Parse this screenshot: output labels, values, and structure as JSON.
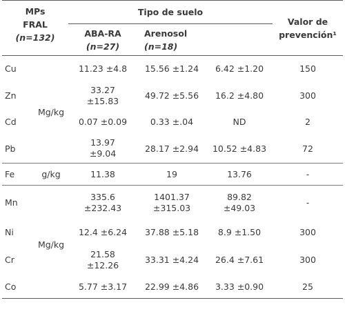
{
  "header": {
    "mps": "MPs",
    "fral": "FRAL",
    "n_fral": "(n=132)",
    "tipo_suelo": "Tipo de suelo",
    "aba_ra": "ABA-RA",
    "n_aba": "(n=27)",
    "arenosol": "Arenosol",
    "n_aren": "(n=18)",
    "valor_de": "Valor de",
    "prevencion": "prevención¹"
  },
  "units": {
    "mgkg_top": "Mg/kg",
    "gkg": "g/kg",
    "mgkg_bottom": "Mg/kg"
  },
  "rows": [
    {
      "el": "Cu",
      "fral": "11.23 ±4.8",
      "aba": "15.56 ±1.24",
      "aren": "6.42 ±1.20",
      "valor": "150"
    },
    {
      "el": "Zn",
      "fral1": "33.27",
      "fral2": "±15.83",
      "aba": "49.72 ±5.56",
      "aren": "16.2 ±4.80",
      "valor": "300"
    },
    {
      "el": "Cd",
      "fral": "0.07 ±0.09",
      "aba": "0.33 ±.04",
      "aren": "ND",
      "valor": "2"
    },
    {
      "el": "Pb",
      "fral1": "13.97",
      "fral2": "±9.04",
      "aba": "28.17 ±2.94",
      "aren": "10.52 ±4.83",
      "valor": "72"
    },
    {
      "el": "Fe",
      "fral": "11.38",
      "aba": "19",
      "aren": "13.76",
      "valor": "-"
    },
    {
      "el": "Mn",
      "fral1": "335.6",
      "fral2": "±232.43",
      "aba1": "1401.37",
      "aba2": "±315.03",
      "aren1": "89.82",
      "aren2": "±49.03",
      "valor": "-"
    },
    {
      "el": "Ni",
      "fral": "12.4 ±6.24",
      "aba": "37.88 ±5.18",
      "aren": "8.9 ±1.50",
      "valor": "300"
    },
    {
      "el": "Cr",
      "fral1": "21.58",
      "fral2": "±12.26",
      "aba": "33.31 ±4.24",
      "aren": "26.4 ±7.61",
      "valor": "300"
    },
    {
      "el": "Co",
      "fral": "5.77 ±3.17",
      "aba": "22.99 ±4.86",
      "aren": "3.33 ±0.90",
      "valor": "25"
    }
  ]
}
